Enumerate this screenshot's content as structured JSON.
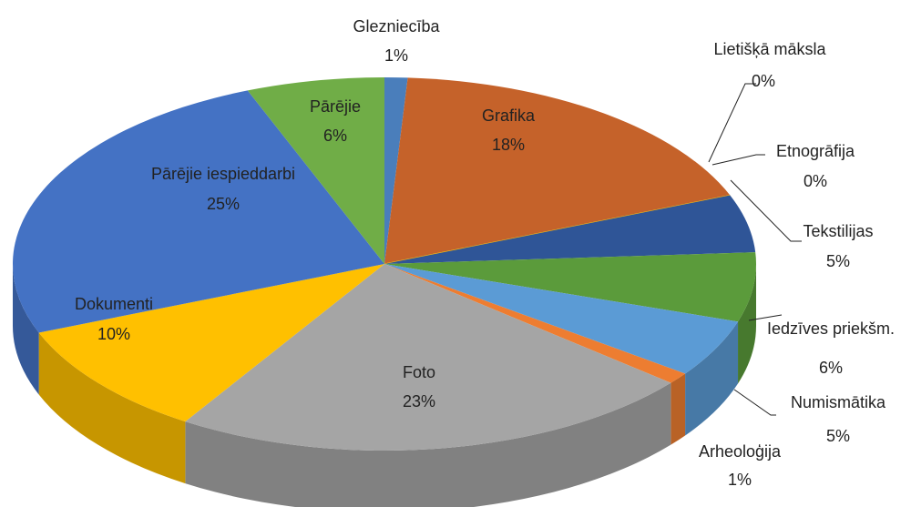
{
  "chart_data": {
    "type": "pie",
    "categories": [
      "Glezniecība",
      "Grafika",
      "Lietišķā māksla",
      "Etnogrāfija",
      "Tekstilijas",
      "Iedzīves priekšm.",
      "Numismātika",
      "Arheoloģija",
      "Foto",
      "Dokumenti",
      "Pārējie iespieddarbi",
      "Pārējie"
    ],
    "values": [
      1,
      18,
      0,
      0,
      5,
      6,
      5,
      1,
      23,
      10,
      25,
      6
    ],
    "value_labels": [
      "1%",
      "18%",
      "0%",
      "0%",
      "5%",
      "6%",
      "5%",
      "1%",
      "23%",
      "10%",
      "25%",
      "6%"
    ],
    "colors": [
      "#4a7ebb",
      "#c5622a",
      "#a5a5a5",
      "#ffc000",
      "#2f5597",
      "#5b9b3b",
      "#5b9bd5",
      "#ed7d31",
      "#a5a5a5",
      "#ffc000",
      "#4472c4",
      "#70ad47"
    ]
  }
}
